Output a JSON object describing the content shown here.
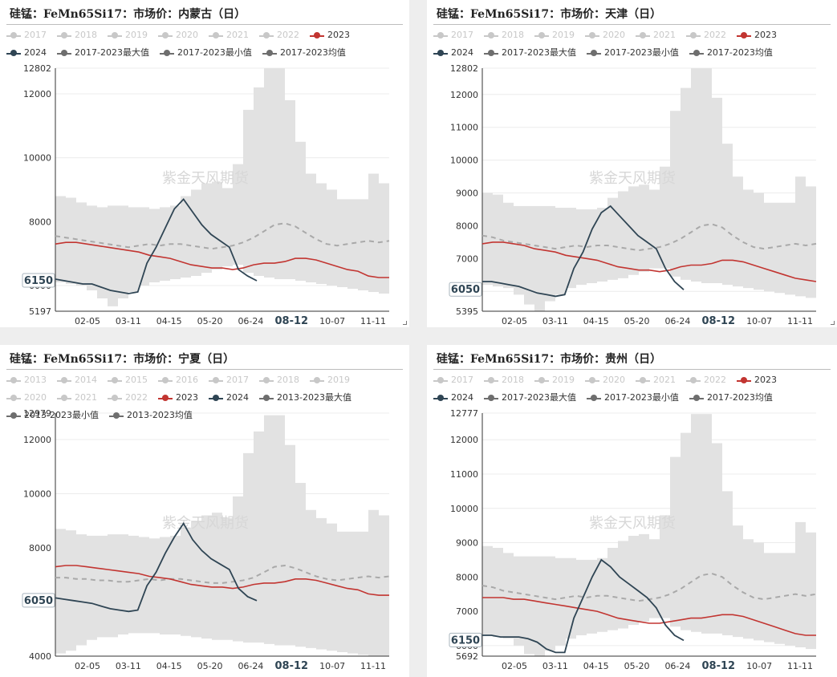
{
  "colors": {
    "y2023": "#c23531",
    "y2024": "#2f4554",
    "muted": "#c8c8c8",
    "band": "#e2e2e2",
    "avg": "#a9a9a9",
    "stats": "#6e6e6e"
  },
  "watermark": "紫金天风期货",
  "chart_data": [
    {
      "type": "line",
      "title": "硅锰：FeMn65Si17：市场价：内蒙古（日）",
      "legend": [
        {
          "label": "2017",
          "active": false
        },
        {
          "label": "2018",
          "active": false
        },
        {
          "label": "2019",
          "active": false
        },
        {
          "label": "2020",
          "active": false
        },
        {
          "label": "2021",
          "active": false
        },
        {
          "label": "2022",
          "active": false
        },
        {
          "label": "2023",
          "active": true,
          "kind": "y2023"
        },
        {
          "label": "2024",
          "active": true,
          "kind": "y2024"
        },
        {
          "label": "2017-2023最大值",
          "active": true,
          "kind": "stats"
        },
        {
          "label": "2017-2023最小值",
          "active": true,
          "kind": "stats"
        },
        {
          "label": "2017-2023均值",
          "active": true,
          "kind": "stats"
        }
      ],
      "x_ticks": [
        "02-05",
        "03-11",
        "04-15",
        "05-20",
        "06-24",
        "08-12",
        "10-07",
        "11-11"
      ],
      "y_ticks": [
        5197,
        6000,
        8000,
        10000,
        12000,
        12802
      ],
      "ylim": [
        5197,
        12802
      ],
      "current_label": "6150",
      "current_date": "08-12",
      "series": [
        {
          "name": "2017-2023最大值",
          "values": [
            8800,
            8750,
            8600,
            8500,
            8450,
            8500,
            8500,
            8450,
            8450,
            8400,
            8450,
            8500,
            8800,
            9000,
            9200,
            9250,
            9050,
            9800,
            11500,
            12200,
            12800,
            12800,
            11800,
            10500,
            9500,
            9200,
            9000,
            8700,
            8700,
            8700,
            9500,
            9200,
            9050
          ]
        },
        {
          "name": "2017-2023最小值",
          "values": [
            6100,
            6050,
            6000,
            5850,
            5600,
            5350,
            5600,
            5800,
            6000,
            6100,
            6150,
            6200,
            6250,
            6300,
            6400,
            6500,
            6600,
            6650,
            6400,
            6300,
            6250,
            6200,
            6200,
            6150,
            6100,
            6050,
            6000,
            5950,
            5900,
            5850,
            5800,
            5750,
            5800
          ]
        },
        {
          "name": "2017-2023均值",
          "values": [
            7550,
            7500,
            7450,
            7400,
            7350,
            7300,
            7250,
            7200,
            7250,
            7300,
            7250,
            7300,
            7300,
            7250,
            7200,
            7150,
            7200,
            7250,
            7350,
            7500,
            7700,
            7900,
            7950,
            7850,
            7650,
            7450,
            7300,
            7250,
            7300,
            7350,
            7400,
            7350,
            7400
          ]
        },
        {
          "name": "2023",
          "values": [
            7300,
            7350,
            7350,
            7300,
            7250,
            7200,
            7150,
            7100,
            7050,
            6950,
            6900,
            6850,
            6750,
            6650,
            6600,
            6550,
            6550,
            6500,
            6550,
            6650,
            6700,
            6700,
            6750,
            6850,
            6850,
            6800,
            6700,
            6600,
            6500,
            6450,
            6300,
            6250,
            6250
          ]
        },
        {
          "name": "2024",
          "values": [
            6200,
            6150,
            6100,
            6050,
            6050,
            5950,
            5850,
            5800,
            5750,
            5800,
            6700,
            7200,
            7800,
            8400,
            8700,
            8300,
            7900,
            7600,
            7400,
            7200,
            6500,
            6300,
            6150
          ]
        }
      ]
    },
    {
      "type": "line",
      "title": "硅锰：FeMn65Si17：市场价：天津（日）",
      "legend": [
        {
          "label": "2017",
          "active": false
        },
        {
          "label": "2018",
          "active": false
        },
        {
          "label": "2019",
          "active": false
        },
        {
          "label": "2020",
          "active": false
        },
        {
          "label": "2021",
          "active": false
        },
        {
          "label": "2022",
          "active": false
        },
        {
          "label": "2023",
          "active": true,
          "kind": "y2023"
        },
        {
          "label": "2024",
          "active": true,
          "kind": "y2024"
        },
        {
          "label": "2017-2023最大值",
          "active": true,
          "kind": "stats"
        },
        {
          "label": "2017-2023最小值",
          "active": true,
          "kind": "stats"
        },
        {
          "label": "2017-2023均值",
          "active": true,
          "kind": "stats"
        }
      ],
      "x_ticks": [
        "02-05",
        "03-11",
        "04-15",
        "05-20",
        "06-24",
        "08-12",
        "10-07",
        "11-11"
      ],
      "y_ticks": [
        5395,
        6000,
        7000,
        8000,
        9000,
        10000,
        11000,
        12000,
        12802
      ],
      "ylim": [
        5395,
        12802
      ],
      "current_label": "6050",
      "current_date": "08-12",
      "series": [
        {
          "name": "2017-2023最大值",
          "values": [
            9000,
            8950,
            8700,
            8600,
            8600,
            8600,
            8600,
            8550,
            8550,
            8500,
            8500,
            8550,
            8850,
            9050,
            9200,
            9250,
            9100,
            9800,
            11500,
            12200,
            12800,
            12800,
            11900,
            10500,
            9500,
            9100,
            9000,
            8700,
            8700,
            8700,
            9500,
            9200,
            9000
          ]
        },
        {
          "name": "2017-2023最小值",
          "values": [
            6200,
            6150,
            6100,
            5900,
            5600,
            5400,
            5700,
            5900,
            6100,
            6200,
            6250,
            6300,
            6350,
            6400,
            6500,
            6600,
            6700,
            6700,
            6450,
            6350,
            6300,
            6250,
            6250,
            6200,
            6150,
            6100,
            6050,
            6000,
            5950,
            5900,
            5850,
            5800,
            5850
          ]
        },
        {
          "name": "2017-2023均值",
          "values": [
            7700,
            7650,
            7550,
            7500,
            7450,
            7400,
            7350,
            7300,
            7350,
            7400,
            7350,
            7400,
            7400,
            7350,
            7300,
            7250,
            7300,
            7350,
            7450,
            7600,
            7800,
            8000,
            8050,
            7950,
            7700,
            7500,
            7350,
            7300,
            7350,
            7400,
            7450,
            7400,
            7450
          ]
        },
        {
          "name": "2023",
          "values": [
            7450,
            7500,
            7500,
            7450,
            7400,
            7300,
            7250,
            7200,
            7100,
            7050,
            7000,
            6950,
            6850,
            6750,
            6700,
            6650,
            6650,
            6600,
            6650,
            6750,
            6800,
            6800,
            6850,
            6950,
            6950,
            6900,
            6800,
            6700,
            6600,
            6500,
            6400,
            6350,
            6300
          ]
        },
        {
          "name": "2024",
          "values": [
            6300,
            6300,
            6250,
            6200,
            6150,
            6050,
            5950,
            5900,
            5850,
            5900,
            6700,
            7200,
            7900,
            8400,
            8600,
            8300,
            8000,
            7700,
            7500,
            7300,
            6700,
            6300,
            6050
          ]
        }
      ]
    },
    {
      "type": "line",
      "title": "硅锰：FeMn65Si17：市场价：宁夏（日）",
      "legend": [
        {
          "label": "2013",
          "active": false
        },
        {
          "label": "2014",
          "active": false
        },
        {
          "label": "2015",
          "active": false
        },
        {
          "label": "2016",
          "active": false
        },
        {
          "label": "2017",
          "active": false
        },
        {
          "label": "2018",
          "active": false
        },
        {
          "label": "2019",
          "active": false
        },
        {
          "label": "2020",
          "active": false
        },
        {
          "label": "2021",
          "active": false
        },
        {
          "label": "2022",
          "active": false
        },
        {
          "label": "2023",
          "active": true,
          "kind": "y2023"
        },
        {
          "label": "2024",
          "active": true,
          "kind": "y2024"
        },
        {
          "label": "2013-2023最大值",
          "active": true,
          "kind": "stats"
        },
        {
          "label": "2013-2023最小值",
          "active": true,
          "kind": "stats"
        },
        {
          "label": "2013-2023均值",
          "active": true,
          "kind": "stats"
        }
      ],
      "x_ticks": [
        "02-05",
        "03-11",
        "04-15",
        "05-20",
        "06-24",
        "08-12",
        "10-07",
        "11-11"
      ],
      "y_ticks": [
        4000,
        6000,
        8000,
        10000,
        12000,
        12979
      ],
      "ylim": [
        4000,
        12979
      ],
      "current_label": "6050",
      "current_date": "08-12",
      "series": [
        {
          "name": "2013-2023最大值",
          "values": [
            8700,
            8650,
            8500,
            8450,
            8450,
            8500,
            8500,
            8450,
            8400,
            8350,
            8400,
            8450,
            8750,
            9000,
            9200,
            9300,
            9100,
            9900,
            11500,
            12300,
            12900,
            12900,
            11800,
            10400,
            9400,
            9100,
            8900,
            8600,
            8600,
            8600,
            9400,
            9200,
            9000
          ]
        },
        {
          "name": "2013-2023最小值",
          "values": [
            4100,
            4200,
            4400,
            4600,
            4700,
            4700,
            4800,
            4850,
            4850,
            4850,
            4800,
            4800,
            4750,
            4700,
            4650,
            4600,
            4600,
            4550,
            4500,
            4500,
            4450,
            4400,
            4400,
            4350,
            4300,
            4250,
            4200,
            4150,
            4100,
            4050,
            4000,
            4000,
            4000
          ]
        },
        {
          "name": "2013-2023均值",
          "values": [
            6900,
            6900,
            6850,
            6850,
            6800,
            6800,
            6750,
            6750,
            6800,
            6850,
            6800,
            6850,
            6850,
            6800,
            6750,
            6700,
            6700,
            6750,
            6800,
            6900,
            7100,
            7300,
            7350,
            7250,
            7100,
            6950,
            6850,
            6800,
            6850,
            6900,
            6950,
            6900,
            6950
          ]
        },
        {
          "name": "2023",
          "values": [
            7300,
            7350,
            7350,
            7300,
            7250,
            7200,
            7150,
            7100,
            7050,
            6950,
            6900,
            6850,
            6750,
            6650,
            6600,
            6550,
            6550,
            6500,
            6550,
            6650,
            6700,
            6700,
            6750,
            6850,
            6850,
            6800,
            6700,
            6600,
            6500,
            6450,
            6300,
            6250,
            6250
          ]
        },
        {
          "name": "2024",
          "values": [
            6150,
            6100,
            6050,
            6000,
            5950,
            5850,
            5750,
            5700,
            5650,
            5700,
            6600,
            7100,
            7800,
            8400,
            8900,
            8300,
            7900,
            7600,
            7400,
            7200,
            6500,
            6200,
            6050
          ]
        }
      ]
    },
    {
      "type": "line",
      "title": "硅锰：FeMn65Si17：市场价：贵州（日）",
      "legend": [
        {
          "label": "2017",
          "active": false
        },
        {
          "label": "2018",
          "active": false
        },
        {
          "label": "2019",
          "active": false
        },
        {
          "label": "2020",
          "active": false
        },
        {
          "label": "2021",
          "active": false
        },
        {
          "label": "2022",
          "active": false
        },
        {
          "label": "2023",
          "active": true,
          "kind": "y2023"
        },
        {
          "label": "2024",
          "active": true,
          "kind": "y2024"
        },
        {
          "label": "2017-2023最大值",
          "active": true,
          "kind": "stats"
        },
        {
          "label": "2017-2023最小值",
          "active": true,
          "kind": "stats"
        },
        {
          "label": "2017-2023均值",
          "active": true,
          "kind": "stats"
        }
      ],
      "x_ticks": [
        "02-05",
        "03-11",
        "04-15",
        "05-20",
        "06-24",
        "08-12",
        "10-07",
        "11-11"
      ],
      "y_ticks": [
        5692,
        6000,
        7000,
        8000,
        9000,
        10000,
        11000,
        12000,
        12777
      ],
      "ylim": [
        5692,
        12777
      ],
      "current_label": "6150",
      "current_date": "08-12",
      "series": [
        {
          "name": "2017-2023最大值",
          "values": [
            8900,
            8850,
            8700,
            8600,
            8600,
            8600,
            8600,
            8550,
            8550,
            8500,
            8500,
            8550,
            8850,
            9050,
            9200,
            9250,
            9100,
            9800,
            11500,
            12200,
            12750,
            12750,
            11900,
            10500,
            9500,
            9100,
            9000,
            8700,
            8700,
            8700,
            9600,
            9300,
            9100
          ]
        },
        {
          "name": "2017-2023最小值",
          "values": [
            6300,
            6250,
            6200,
            6000,
            5750,
            5700,
            5850,
            6000,
            6200,
            6300,
            6350,
            6400,
            6450,
            6500,
            6600,
            6700,
            6800,
            6800,
            6550,
            6450,
            6400,
            6350,
            6350,
            6300,
            6250,
            6200,
            6150,
            6100,
            6050,
            6000,
            5950,
            5900,
            5950
          ]
        },
        {
          "name": "2017-2023均值",
          "values": [
            7750,
            7700,
            7600,
            7550,
            7500,
            7450,
            7400,
            7350,
            7400,
            7450,
            7400,
            7450,
            7450,
            7400,
            7350,
            7300,
            7350,
            7400,
            7500,
            7650,
            7850,
            8050,
            8100,
            8000,
            7750,
            7550,
            7400,
            7350,
            7400,
            7450,
            7500,
            7450,
            7500
          ]
        },
        {
          "name": "2023",
          "values": [
            7400,
            7400,
            7400,
            7350,
            7350,
            7300,
            7250,
            7200,
            7150,
            7100,
            7050,
            7000,
            6900,
            6800,
            6750,
            6700,
            6650,
            6650,
            6700,
            6750,
            6800,
            6800,
            6850,
            6900,
            6900,
            6850,
            6750,
            6650,
            6550,
            6450,
            6350,
            6300,
            6300
          ]
        },
        {
          "name": "2024",
          "values": [
            6300,
            6300,
            6250,
            6250,
            6250,
            6200,
            6100,
            5900,
            5800,
            5800,
            6800,
            7400,
            8000,
            8500,
            8300,
            8000,
            7800,
            7600,
            7400,
            7100,
            6600,
            6300,
            6150
          ]
        }
      ]
    }
  ]
}
